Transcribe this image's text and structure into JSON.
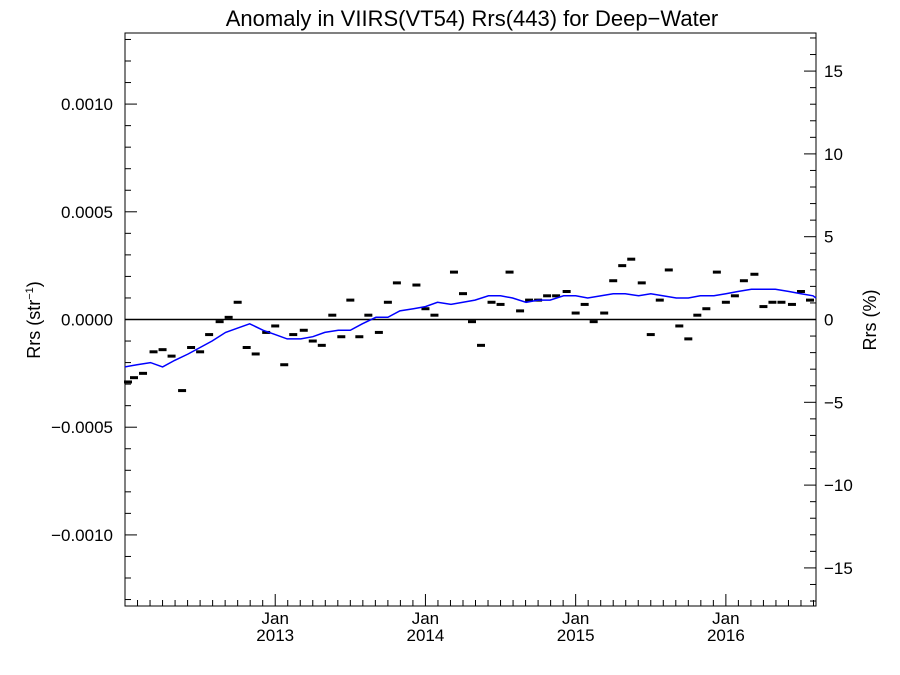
{
  "chart_data": {
    "type": "line",
    "title": "Anomaly in VIIRS(VT54) Rrs(443) for Deep−Water",
    "ylabel_left": "Rrs (str",
    "ylabel_left_sup": "−1",
    "ylabel_left_end": ")",
    "ylabel_right": "Rrs (%)",
    "xlabel": "",
    "x_unit": "fractional year",
    "xlim": [
      2012.0,
      2016.6
    ],
    "ylim_left": [
      -0.00133,
      0.00133
    ],
    "ylim_right": [
      -17.3,
      17.3
    ],
    "left_ticks": [
      {
        "value": 0.001,
        "label": "0.0010"
      },
      {
        "value": 0.0005,
        "label": "0.0005"
      },
      {
        "value": 0.0,
        "label": "0.0000"
      },
      {
        "value": -0.0005,
        "label": "−0.0005"
      },
      {
        "value": -0.001,
        "label": "−0.0010"
      }
    ],
    "right_ticks": [
      {
        "value": 15,
        "label": "15"
      },
      {
        "value": 10,
        "label": "10"
      },
      {
        "value": 5,
        "label": "5"
      },
      {
        "value": 0,
        "label": "0"
      },
      {
        "value": -5,
        "label": "−5"
      },
      {
        "value": -10,
        "label": "−10"
      },
      {
        "value": -15,
        "label": "−15"
      }
    ],
    "x_ticks": [
      {
        "value": 2013.0,
        "month": "Jan",
        "year": "2013"
      },
      {
        "value": 2014.0,
        "month": "Jan",
        "year": "2014"
      },
      {
        "value": 2015.0,
        "month": "Jan",
        "year": "2015"
      },
      {
        "value": 2016.0,
        "month": "Jan",
        "year": "2016"
      }
    ],
    "zero_line": true,
    "grid": false,
    "series": [
      {
        "style": "markers",
        "color": "#000000",
        "x": [
          2012.02,
          2012.06,
          2012.12,
          2012.19,
          2012.25,
          2012.31,
          2012.38,
          2012.44,
          2012.5,
          2012.56,
          2012.63,
          2012.69,
          2012.75,
          2012.81,
          2012.87,
          2012.94,
          2013.0,
          2013.06,
          2013.12,
          2013.19,
          2013.25,
          2013.31,
          2013.38,
          2013.44,
          2013.5,
          2013.56,
          2013.62,
          2013.69,
          2013.75,
          2013.81,
          2013.94,
          2014.0,
          2014.06,
          2014.19,
          2014.25,
          2014.31,
          2014.37,
          2014.44,
          2014.5,
          2014.56,
          2014.63,
          2014.69,
          2014.75,
          2014.81,
          2014.87,
          2014.94,
          2015.0,
          2015.06,
          2015.12,
          2015.19,
          2015.25,
          2015.31,
          2015.37,
          2015.44,
          2015.5,
          2015.56,
          2015.62,
          2015.69,
          2015.75,
          2015.81,
          2015.87,
          2015.94,
          2016.0,
          2016.06,
          2016.12,
          2016.19,
          2016.25,
          2016.31,
          2016.37,
          2016.44,
          2016.5,
          2016.56
        ],
        "y": [
          -0.00029,
          -0.00027,
          -0.00025,
          -0.00015,
          -0.00014,
          -0.00017,
          -0.00033,
          -0.00013,
          -0.00015,
          -7e-05,
          -1e-05,
          1e-05,
          8e-05,
          -0.00013,
          -0.00016,
          -6e-05,
          -3e-05,
          -0.00021,
          -7e-05,
          -5e-05,
          -0.0001,
          -0.00012,
          2e-05,
          -8e-05,
          9e-05,
          -8e-05,
          2e-05,
          -6e-05,
          8e-05,
          0.00017,
          0.00016,
          5e-05,
          2e-05,
          0.00022,
          0.00012,
          -1e-05,
          -0.00012,
          8e-05,
          7e-05,
          0.00022,
          4e-05,
          9e-05,
          9e-05,
          0.00011,
          0.00011,
          0.00013,
          3e-05,
          7e-05,
          -1e-05,
          3e-05,
          0.00018,
          0.00025,
          0.00028,
          0.00017,
          -7e-05,
          9e-05,
          0.00023,
          -3e-05,
          -9e-05,
          2e-05,
          5e-05,
          0.00022,
          8e-05,
          0.00011,
          0.00018,
          0.00021,
          6e-05,
          8e-05,
          8e-05,
          7e-05,
          0.00013,
          9e-05
        ]
      },
      {
        "style": "line",
        "color": "#0000ff",
        "x": [
          2012.0,
          2012.08,
          2012.17,
          2012.25,
          2012.33,
          2012.42,
          2012.5,
          2012.58,
          2012.67,
          2012.75,
          2012.83,
          2012.92,
          2013.0,
          2013.08,
          2013.17,
          2013.25,
          2013.33,
          2013.42,
          2013.5,
          2013.58,
          2013.67,
          2013.75,
          2013.83,
          2013.92,
          2014.0,
          2014.08,
          2014.17,
          2014.25,
          2014.33,
          2014.42,
          2014.5,
          2014.58,
          2014.67,
          2014.75,
          2014.83,
          2014.92,
          2015.0,
          2015.08,
          2015.17,
          2015.25,
          2015.33,
          2015.42,
          2015.5,
          2015.58,
          2015.67,
          2015.75,
          2015.83,
          2015.92,
          2016.0,
          2016.08,
          2016.17,
          2016.25,
          2016.33,
          2016.42,
          2016.5,
          2016.58,
          2016.6
        ],
        "y": [
          -0.00022,
          -0.00021,
          -0.0002,
          -0.00022,
          -0.00019,
          -0.00016,
          -0.00013,
          -0.0001,
          -6e-05,
          -4e-05,
          -2e-05,
          -5e-05,
          -7e-05,
          -9e-05,
          -9e-05,
          -8e-05,
          -6e-05,
          -5e-05,
          -5e-05,
          -2e-05,
          1e-05,
          1e-05,
          4e-05,
          5e-05,
          6e-05,
          8e-05,
          7e-05,
          8e-05,
          9e-05,
          0.00011,
          0.00011,
          0.0001,
          8e-05,
          9e-05,
          9e-05,
          0.00011,
          0.00011,
          0.0001,
          0.00011,
          0.00012,
          0.00012,
          0.00011,
          0.00012,
          0.00011,
          0.0001,
          0.0001,
          0.00011,
          0.00011,
          0.00012,
          0.00013,
          0.00014,
          0.00014,
          0.00014,
          0.00013,
          0.00012,
          0.00011,
          0.0001
        ]
      }
    ]
  }
}
